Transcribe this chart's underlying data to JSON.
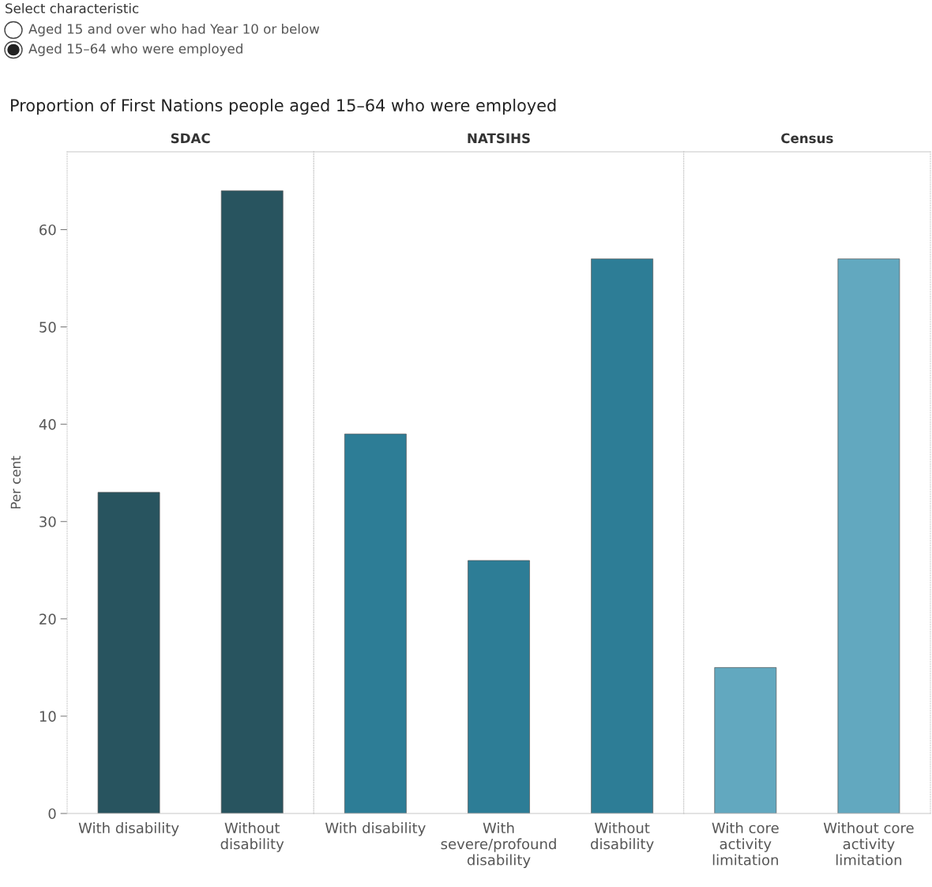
{
  "chart_data": [
    {
      "type": "bar",
      "title": "SDAC",
      "ylabel": "Per cent",
      "categories": [
        "With disability",
        "Without disability"
      ],
      "values": [
        33,
        64
      ],
      "color": "#28545f",
      "ylim": [
        0,
        68
      ],
      "yticks": [
        0,
        10,
        20,
        30,
        40,
        50,
        60
      ],
      "grid": false,
      "annotations": [
        "Select characteristic",
        "Aged 15 and over who had Year 10 or below",
        "Aged 15–64 who were employed",
        "Proportion of First Nations people aged 15–64 who were employed"
      ]
    },
    {
      "type": "bar",
      "title": "NATSIHS",
      "categories": [
        "With disability",
        "With severe/profound disability",
        "Without disability"
      ],
      "values": [
        39,
        26,
        57
      ],
      "color": "#2d7d96",
      "ylim": [
        0,
        68
      ],
      "yticks": [
        0,
        10,
        20,
        30,
        40,
        50,
        60
      ],
      "grid": false,
      "tick_labels": "x"
    },
    {
      "type": "bar",
      "title": "Census",
      "categories": [
        "With core activity limitation",
        "Without core activity limitation"
      ],
      "values": [
        15,
        57
      ],
      "color": "#62a8bf",
      "ylim": [
        0,
        68
      ],
      "yticks": [
        0,
        10,
        20,
        30,
        40,
        50,
        60
      ],
      "grid": false,
      "tick_labels": "x"
    }
  ]
}
